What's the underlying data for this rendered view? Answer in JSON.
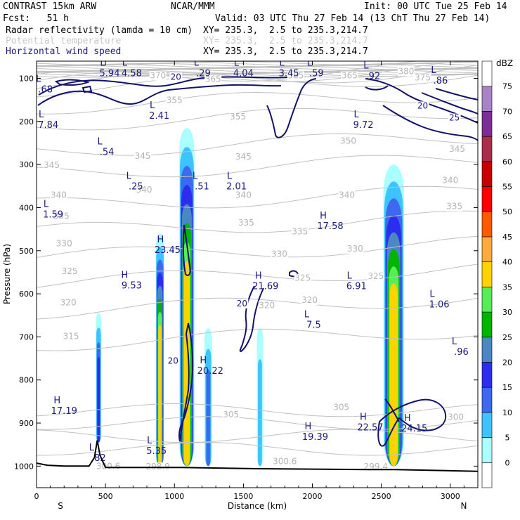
{
  "header": {
    "model": "CONTRAST 15km ARW",
    "center": "NCAR/MMM",
    "init": "Init: 00 UTC Tue 25 Feb 14",
    "fcst": "Fcst:   51 h",
    "valid": "Valid: 03 UTC Thu 27 Feb 14 (13 ChT Thu 27 Feb 14)",
    "fields": [
      {
        "name": "Radar reflectivity (lamda = 10 cm)",
        "xy": "XY= 235.3,  2.5 to 235.3,214.7",
        "style": "black"
      },
      {
        "name": "Potential temperature",
        "xy": "XY= 235.3,  2.5 to 235.3,214.7",
        "style": "gray"
      },
      {
        "name": "Horizontal wind speed",
        "xy": "XY= 235.3,  2.5 to 235.3,214.7",
        "style": "navy"
      }
    ]
  },
  "chart_data": {
    "type": "cross-section",
    "xlabel": "Distance (km)",
    "ylabel": "Pressure (hPa)",
    "xlim": [
      0,
      3200
    ],
    "ylim": [
      1050,
      60
    ],
    "x_ticks": [
      0,
      500,
      1000,
      1500,
      2000,
      2500,
      3000
    ],
    "y_ticks": [
      100,
      200,
      300,
      400,
      500,
      600,
      700,
      800,
      900,
      1000
    ],
    "end_labels": {
      "left": "S",
      "right": "N"
    },
    "colorbar": {
      "title": "dBZ",
      "levels": [
        0,
        5,
        10,
        15,
        20,
        25,
        30,
        35,
        40,
        45,
        50,
        55,
        60,
        65,
        70,
        75
      ],
      "colors": [
        "#ffffff",
        "#aaffff",
        "#3dc3ff",
        "#3c69f0",
        "#2d2df0",
        "#4b87c3",
        "#00b400",
        "#55ee55",
        "#ffd200",
        "#ffaa3c",
        "#ff5a00",
        "#ff0000",
        "#c80000",
        "#aa2d4b",
        "#7d2d96",
        "#aa82c8",
        "#ffffff"
      ]
    },
    "theta_labels": [
      {
        "text": "380",
        "x": 2680,
        "p": 90
      },
      {
        "text": "375",
        "x": 2800,
        "p": 105
      },
      {
        "text": "370",
        "x": 880,
        "p": 100
      },
      {
        "text": "365",
        "x": 1280,
        "p": 108
      },
      {
        "text": "365",
        "x": 1880,
        "p": 100
      },
      {
        "text": "365",
        "x": 2270,
        "p": 100
      },
      {
        "text": "355",
        "x": 1000,
        "p": 157
      },
      {
        "text": "355",
        "x": 1460,
        "p": 195
      },
      {
        "text": "350",
        "x": 2260,
        "p": 252
      },
      {
        "text": "345",
        "x": 110,
        "p": 308
      },
      {
        "text": "345",
        "x": 770,
        "p": 287
      },
      {
        "text": "345",
        "x": 1500,
        "p": 288
      },
      {
        "text": "345",
        "x": 3050,
        "p": 270
      },
      {
        "text": "340",
        "x": 160,
        "p": 377
      },
      {
        "text": "340",
        "x": 780,
        "p": 365
      },
      {
        "text": "340",
        "x": 1500,
        "p": 377
      },
      {
        "text": "340",
        "x": 2250,
        "p": 377
      },
      {
        "text": "340",
        "x": 3000,
        "p": 343
      },
      {
        "text": "335",
        "x": 180,
        "p": 426
      },
      {
        "text": "335",
        "x": 1520,
        "p": 442
      },
      {
        "text": "335",
        "x": 1910,
        "p": 462
      },
      {
        "text": "335",
        "x": 3030,
        "p": 403
      },
      {
        "text": "330",
        "x": 200,
        "p": 490
      },
      {
        "text": "330",
        "x": 1760,
        "p": 514
      },
      {
        "text": "330",
        "x": 2310,
        "p": 502
      },
      {
        "text": "325",
        "x": 240,
        "p": 554
      },
      {
        "text": "325",
        "x": 1930,
        "p": 570
      },
      {
        "text": "325",
        "x": 2460,
        "p": 566
      },
      {
        "text": "320",
        "x": 230,
        "p": 627
      },
      {
        "text": "320",
        "x": 1670,
        "p": 633
      },
      {
        "text": "320",
        "x": 1980,
        "p": 621
      },
      {
        "text": "315",
        "x": 250,
        "p": 705
      },
      {
        "text": "305",
        "x": 1410,
        "p": 887
      },
      {
        "text": "305",
        "x": 2210,
        "p": 870
      },
      {
        "text": "300",
        "x": 3040,
        "p": 893
      },
      {
        "text": "300.6",
        "x": 520,
        "p": 1007
      },
      {
        "text": "298.9",
        "x": 880,
        "p": 1008
      },
      {
        "text": "300.6",
        "x": 1800,
        "p": 995
      },
      {
        "text": "299.4",
        "x": 2460,
        "p": 1008
      }
    ],
    "wind_contour_labels": [
      {
        "text": "20",
        "x": 1010,
        "p": 103
      },
      {
        "text": "20",
        "x": 2800,
        "p": 170
      },
      {
        "text": "25",
        "x": 3030,
        "p": 198
      },
      {
        "text": "20",
        "x": 1490,
        "p": 629
      },
      {
        "text": "20",
        "x": 990,
        "p": 762
      }
    ],
    "extrema": [
      {
        "kind": "L",
        "value": "5.94",
        "x": 530,
        "p": 90
      },
      {
        "kind": "L",
        "value": "4.58",
        "x": 690,
        "p": 90
      },
      {
        "kind": "L",
        "value": ".29",
        "x": 1210,
        "p": 90
      },
      {
        "kind": "L",
        "value": "4.04",
        "x": 1500,
        "p": 90
      },
      {
        "kind": "L",
        "value": "3.45",
        "x": 1830,
        "p": 90
      },
      {
        "kind": "L",
        "value": ".59",
        "x": 2030,
        "p": 90
      },
      {
        "kind": "L",
        "value": ".92",
        "x": 2440,
        "p": 97
      },
      {
        "kind": "L",
        "value": ".86",
        "x": 2930,
        "p": 107
      },
      {
        "kind": "L",
        "value": ".68",
        "x": 65,
        "p": 128
      },
      {
        "kind": "L",
        "value": "2.41",
        "x": 890,
        "p": 189
      },
      {
        "kind": "L",
        "value": "7.84",
        "x": 85,
        "p": 210
      },
      {
        "kind": "L",
        "value": "9.72",
        "x": 2370,
        "p": 210
      },
      {
        "kind": "L",
        "value": ".54",
        "x": 510,
        "p": 273
      },
      {
        "kind": "L",
        "value": ".51",
        "x": 1200,
        "p": 353
      },
      {
        "kind": "L",
        "value": "2.01",
        "x": 1450,
        "p": 353
      },
      {
        "kind": "L",
        "value": ".25",
        "x": 720,
        "p": 353
      },
      {
        "kind": "L",
        "value": "1.59",
        "x": 120,
        "p": 418
      },
      {
        "kind": "H",
        "value": "17.58",
        "x": 2130,
        "p": 445
      },
      {
        "kind": "H",
        "value": "23.45",
        "x": 950,
        "p": 500
      },
      {
        "kind": "H",
        "value": "9.53",
        "x": 690,
        "p": 583
      },
      {
        "kind": "H",
        "value": "21.69",
        "x": 1660,
        "p": 584
      },
      {
        "kind": "L",
        "value": "6.91",
        "x": 2320,
        "p": 584
      },
      {
        "kind": "L",
        "value": "1.06",
        "x": 2920,
        "p": 627
      },
      {
        "kind": "L",
        "value": "7.5",
        "x": 2010,
        "p": 674
      },
      {
        "kind": "L",
        "value": ".96",
        "x": 3080,
        "p": 737
      },
      {
        "kind": "H",
        "value": "20.22",
        "x": 1260,
        "p": 781
      },
      {
        "kind": "H",
        "value": "17.19",
        "x": 200,
        "p": 874
      },
      {
        "kind": "H",
        "value": "22.57",
        "x": 2420,
        "p": 912
      },
      {
        "kind": "H",
        "value": "24.15",
        "x": 2740,
        "p": 915
      },
      {
        "kind": "H",
        "value": "19.39",
        "x": 2020,
        "p": 934
      },
      {
        "kind": "L",
        "value": "5.35",
        "x": 870,
        "p": 967
      },
      {
        "kind": "L",
        "value": ".82",
        "x": 450,
        "p": 983
      }
    ],
    "reflectivity_cells": [
      {
        "x": 450,
        "w": 40,
        "top": 645,
        "bottom": 945,
        "max": 20
      },
      {
        "x": 895,
        "w": 60,
        "top": 460,
        "bottom": 1000,
        "max": 40
      },
      {
        "x": 1090,
        "w": 110,
        "top": 215,
        "bottom": 1000,
        "max": 40
      },
      {
        "x": 1245,
        "w": 55,
        "top": 680,
        "bottom": 1000,
        "max": 15
      },
      {
        "x": 1620,
        "w": 45,
        "top": 680,
        "bottom": 1000,
        "max": 10
      },
      {
        "x": 2590,
        "w": 150,
        "top": 300,
        "bottom": 1000,
        "max": 40
      }
    ],
    "terrain": [
      [
        0,
        993
      ],
      [
        80,
        998
      ],
      [
        200,
        1000
      ],
      [
        380,
        1000
      ],
      [
        420,
        980
      ],
      [
        440,
        940
      ],
      [
        460,
        975
      ],
      [
        500,
        1003
      ],
      [
        800,
        1003
      ],
      [
        1050,
        1003
      ],
      [
        1600,
        1006
      ],
      [
        2400,
        1008
      ],
      [
        2600,
        1008
      ],
      [
        3200,
        1012
      ]
    ]
  }
}
